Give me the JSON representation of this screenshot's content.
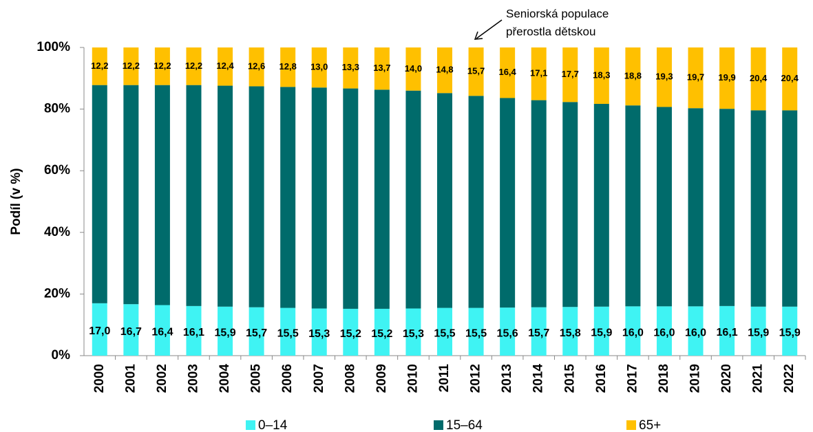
{
  "chart_data": {
    "type": "stacked_bar",
    "y_label": "Podíl (v %)",
    "annotation": [
      "Seniorská populace",
      "přerostla dětskou"
    ],
    "categories": [
      "2000",
      "2001",
      "2002",
      "2003",
      "2004",
      "2005",
      "2006",
      "2007",
      "2008",
      "2009",
      "2010",
      "2011",
      "2012",
      "2013",
      "2014",
      "2015",
      "2016",
      "2017",
      "2018",
      "2019",
      "2020",
      "2021",
      "2022"
    ],
    "series": [
      {
        "name": "0–14",
        "color": "#3ff3f3",
        "values": [
          17.0,
          16.7,
          16.4,
          16.1,
          15.9,
          15.7,
          15.5,
          15.3,
          15.2,
          15.2,
          15.3,
          15.5,
          15.5,
          15.6,
          15.7,
          15.8,
          15.9,
          16.0,
          16.0,
          16.0,
          16.1,
          15.9,
          15.9
        ],
        "value_labels": [
          "17,0",
          "16,7",
          "16,4",
          "16,1",
          "15,9",
          "15,7",
          "15,5",
          "15,3",
          "15,2",
          "15,2",
          "15,3",
          "15,5",
          "15,5",
          "15,6",
          "15,7",
          "15,8",
          "15,9",
          "16,0",
          "16,0",
          "16,0",
          "16,1",
          "15,9",
          "15,9"
        ]
      },
      {
        "name": "15–64",
        "color": "#006b6b",
        "values": [
          70.8,
          71.1,
          71.4,
          71.7,
          71.7,
          71.7,
          71.7,
          71.7,
          71.5,
          71.1,
          70.7,
          69.7,
          68.8,
          68.0,
          67.2,
          66.5,
          65.8,
          65.2,
          64.7,
          64.3,
          64.0,
          63.7,
          63.7
        ]
      },
      {
        "name": "65+",
        "color": "#ffc000",
        "values": [
          12.2,
          12.2,
          12.2,
          12.2,
          12.4,
          12.6,
          12.8,
          13.0,
          13.3,
          13.7,
          14.0,
          14.8,
          15.7,
          16.4,
          17.1,
          17.7,
          18.3,
          18.8,
          19.3,
          19.7,
          19.9,
          20.4,
          20.4
        ],
        "value_labels": [
          "12,2",
          "12,2",
          "12,2",
          "12,2",
          "12,4",
          "12,6",
          "12,8",
          "13,0",
          "13,3",
          "13,7",
          "14,0",
          "14,8",
          "15,7",
          "16,4",
          "17,1",
          "17,7",
          "18,3",
          "18,8",
          "19,3",
          "19,7",
          "19,9",
          "20,4",
          "20,4"
        ]
      }
    ],
    "ylim": [
      0,
      100
    ],
    "yticks": [
      {
        "value": 0,
        "label": "0%"
      },
      {
        "value": 20,
        "label": "20%"
      },
      {
        "value": 40,
        "label": "40%"
      },
      {
        "value": 60,
        "label": "60%"
      },
      {
        "value": 80,
        "label": "80%"
      },
      {
        "value": 100,
        "label": "100%"
      }
    ],
    "legend": "bottom"
  }
}
